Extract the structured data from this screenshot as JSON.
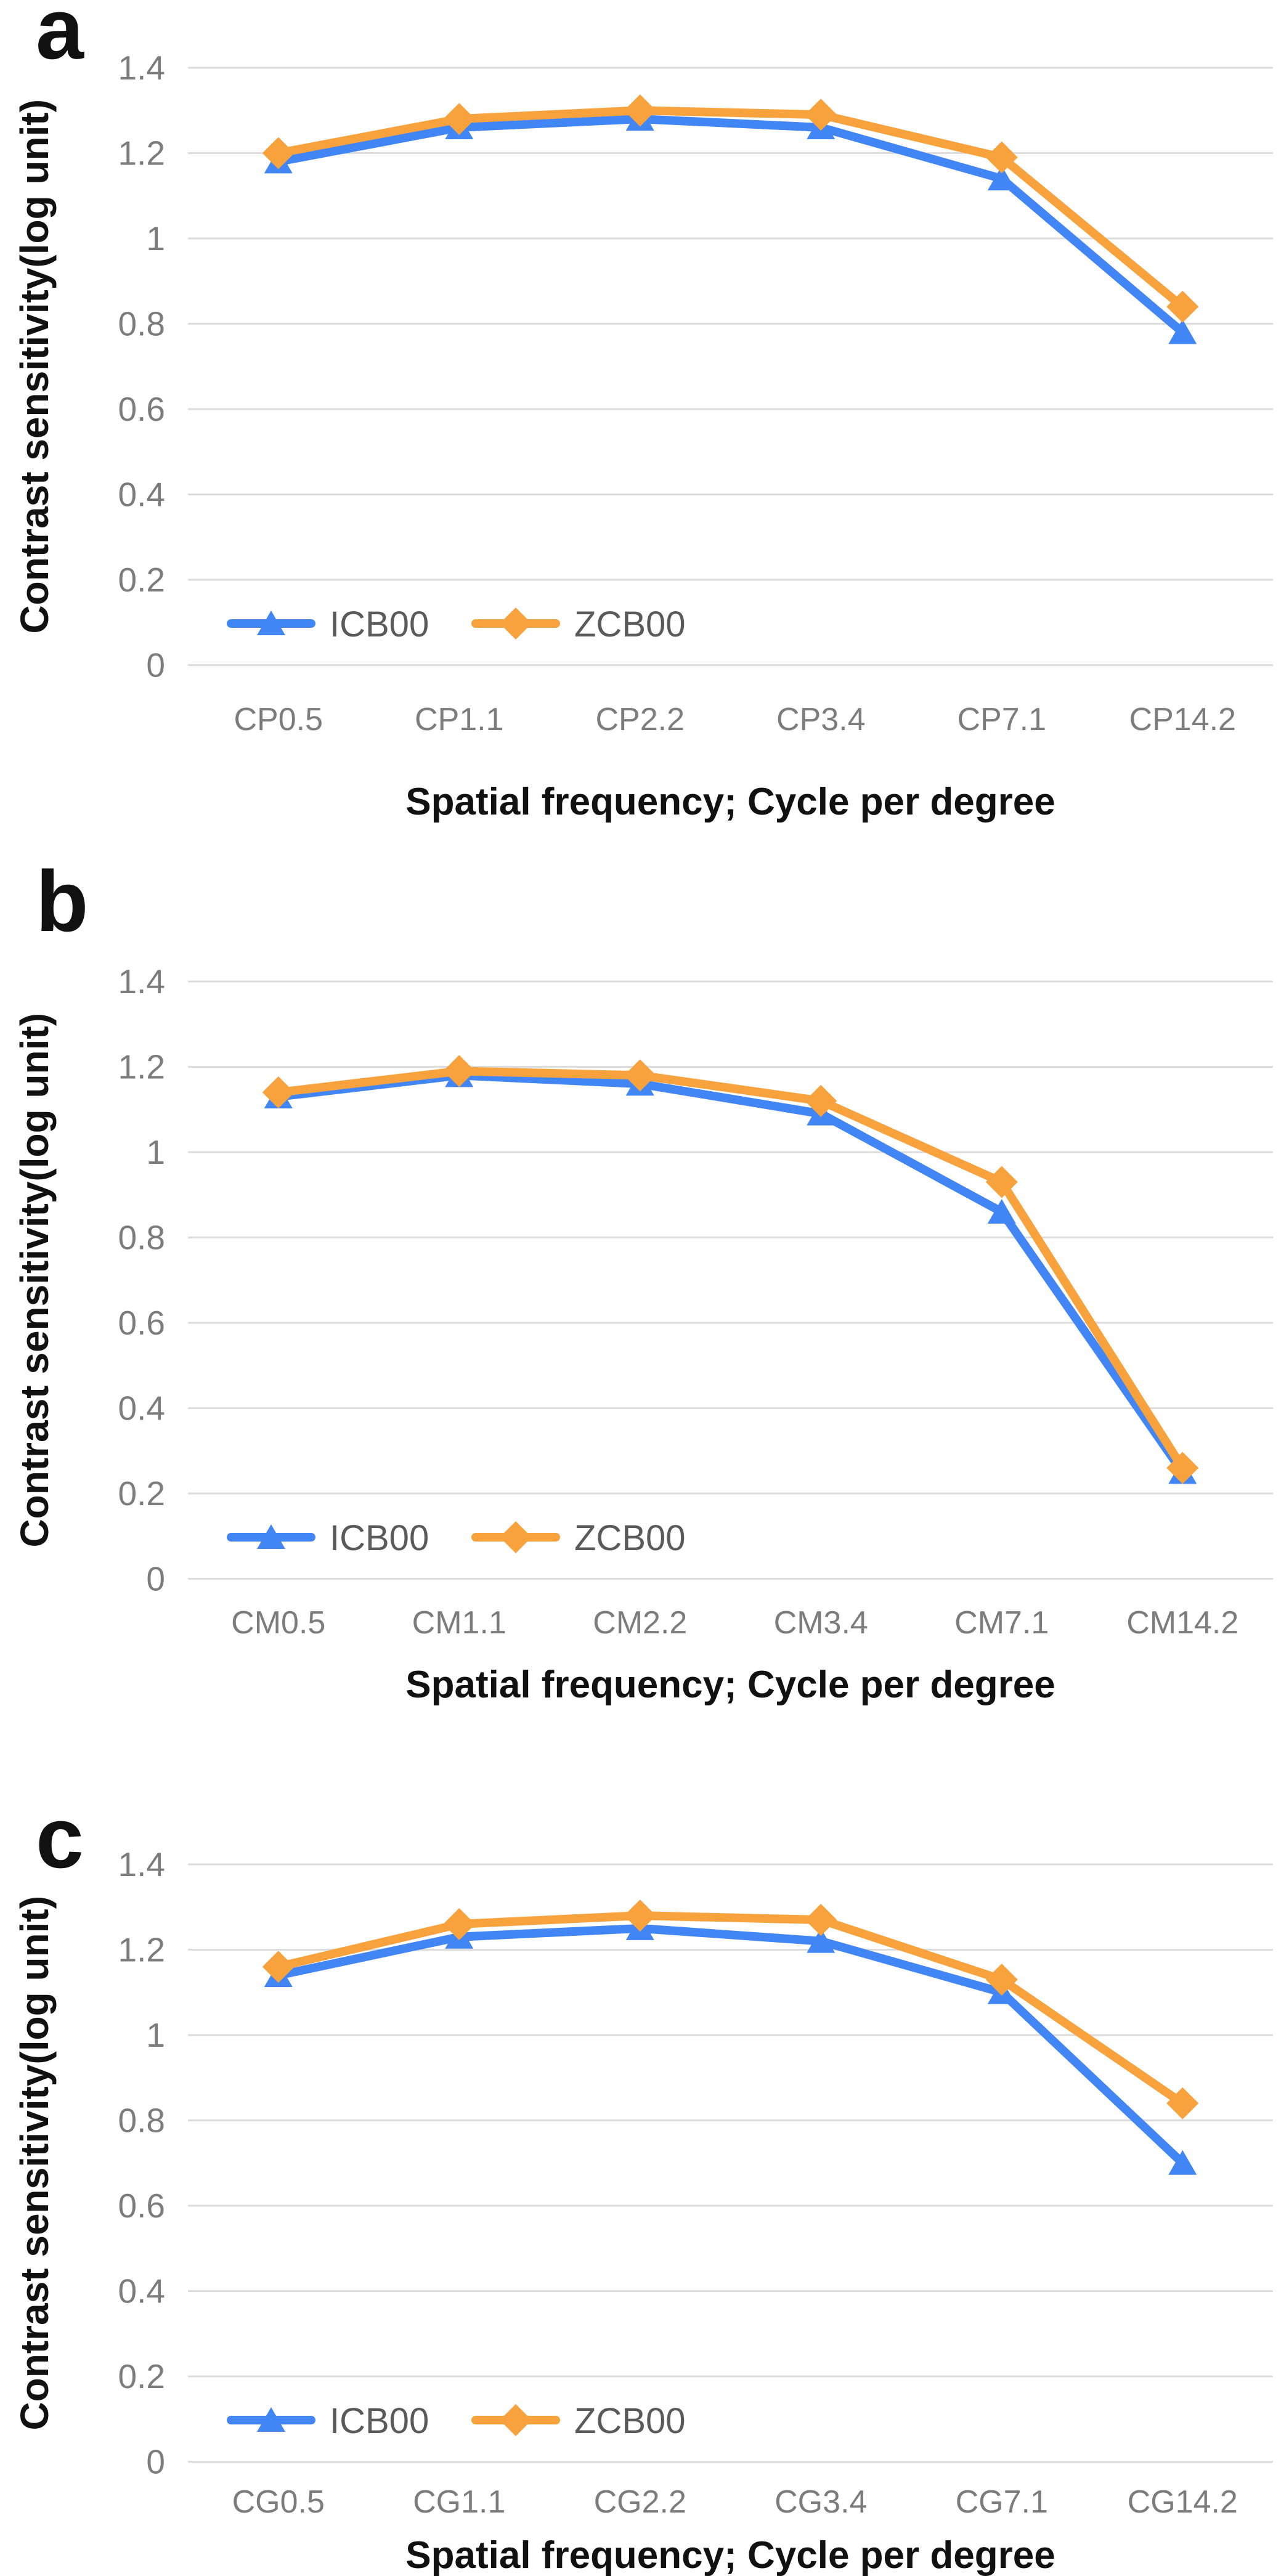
{
  "figure": {
    "background": "#FFFFFF",
    "y_tick_labels": [
      "1.4",
      "1.2",
      "1",
      "0.8",
      "0.6",
      "0.4",
      "0.2",
      "0"
    ],
    "colors": {
      "icb00_blue": "#4285F4",
      "zcb00_orange": "#F7A23C",
      "gridline": "#DCDCDC",
      "tick_label": "#7C7C7C",
      "legend_label": "#5A5A5A",
      "axis_title": "#111111",
      "panel_label": "#111111"
    }
  },
  "legend": {
    "items": [
      {
        "label": "ICB00",
        "marker": "triangle",
        "color": "#4285F4"
      },
      {
        "label": "ZCB00",
        "marker": "diamond",
        "color": "#F7A23C"
      }
    ]
  },
  "chart_data": [
    {
      "type": "line",
      "panel_label": "a",
      "title": "",
      "xlabel": "Spatial frequency; Cycle per degree",
      "ylabel": "Contrast sensitivity(log unit)",
      "ylim": [
        0,
        1.4
      ],
      "ytick_step": 0.2,
      "grid": true,
      "legend_position": "inside-bottom-left",
      "categories": [
        "CP0.5",
        "CP1.1",
        "CP2.2",
        "CP3.4",
        "CP7.1",
        "CP14.2"
      ],
      "series": [
        {
          "name": "ICB00",
          "marker": "triangle",
          "color": "#4285F4",
          "values": [
            1.18,
            1.26,
            1.28,
            1.26,
            1.14,
            0.78
          ]
        },
        {
          "name": "ZCB00",
          "marker": "diamond",
          "color": "#F7A23C",
          "values": [
            1.2,
            1.28,
            1.3,
            1.29,
            1.19,
            0.84
          ]
        }
      ]
    },
    {
      "type": "line",
      "panel_label": "b",
      "title": "",
      "xlabel": "Spatial frequency; Cycle per degree",
      "ylabel": "Contrast sensitivity(log unit)",
      "ylim": [
        0,
        1.4
      ],
      "ytick_step": 0.2,
      "grid": true,
      "legend_position": "inside-bottom-left",
      "categories": [
        "CM0.5",
        "CM1.1",
        "CM2.2",
        "CM3.4",
        "CM7.1",
        "CM14.2"
      ],
      "series": [
        {
          "name": "ICB00",
          "marker": "triangle",
          "color": "#4285F4",
          "values": [
            1.13,
            1.18,
            1.16,
            1.09,
            0.86,
            0.25
          ]
        },
        {
          "name": "ZCB00",
          "marker": "diamond",
          "color": "#F7A23C",
          "values": [
            1.14,
            1.19,
            1.18,
            1.12,
            0.93,
            0.26
          ]
        }
      ]
    },
    {
      "type": "line",
      "panel_label": "c",
      "title": "",
      "xlabel": "Spatial frequency; Cycle per degree",
      "ylabel": "Contrast sensitivity(log unit)",
      "ylim": [
        0,
        1.4
      ],
      "ytick_step": 0.2,
      "grid": true,
      "legend_position": "inside-bottom-left",
      "categories": [
        "CG0.5",
        "CG1.1",
        "CG2.2",
        "CG3.4",
        "CG7.1",
        "CG14.2"
      ],
      "series": [
        {
          "name": "ICB00",
          "marker": "triangle",
          "color": "#4285F4",
          "values": [
            1.14,
            1.23,
            1.25,
            1.22,
            1.1,
            0.7
          ]
        },
        {
          "name": "ZCB00",
          "marker": "diamond",
          "color": "#F7A23C",
          "values": [
            1.16,
            1.26,
            1.28,
            1.27,
            1.13,
            0.84
          ]
        }
      ]
    }
  ]
}
